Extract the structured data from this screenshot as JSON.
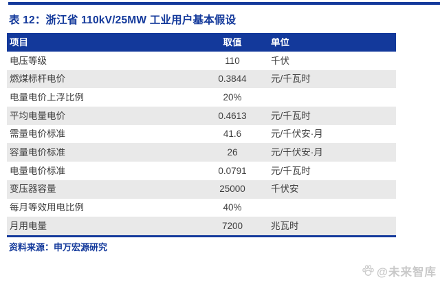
{
  "page": {
    "title": "表 12：浙江省 110kV/25MW 工业用户基本假设",
    "source_label": "资料来源：申万宏源研究",
    "watermark_text": "@未来智库"
  },
  "colors": {
    "navy": "#13399B",
    "row_alt_gray": "#E9E9E9",
    "body_text": "#3D3D3D",
    "watermark_gray": "#C9C9C9"
  },
  "table": {
    "headers": [
      "项目",
      "取值",
      "单位"
    ],
    "rows": [
      {
        "item": "电压等级",
        "value": "110",
        "unit": "千伏"
      },
      {
        "item": "燃煤标杆电价",
        "value": "0.3844",
        "unit": "元/千瓦时"
      },
      {
        "item": "电量电价上浮比例",
        "value": "20%",
        "unit": ""
      },
      {
        "item": "平均电量电价",
        "value": "0.4613",
        "unit": "元/千瓦时"
      },
      {
        "item": "需量电价标准",
        "value": "41.6",
        "unit": "元/千伏安·月"
      },
      {
        "item": "容量电价标准",
        "value": "26",
        "unit": "元/千伏安·月"
      },
      {
        "item": "电量电价标准",
        "value": "0.0791",
        "unit": "元/千瓦时"
      },
      {
        "item": "变压器容量",
        "value": "25000",
        "unit": "千伏安"
      },
      {
        "item": "每月等效用电比例",
        "value": "40%",
        "unit": ""
      },
      {
        "item": "月用电量",
        "value": "7200",
        "unit": "兆瓦时"
      }
    ]
  }
}
